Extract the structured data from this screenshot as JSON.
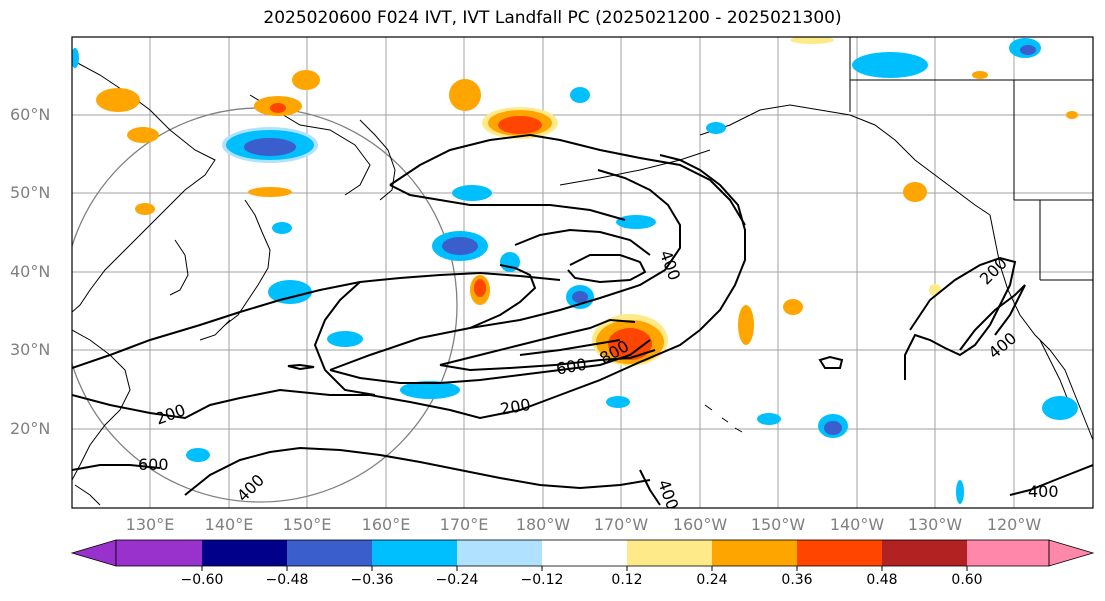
{
  "title": "2025020600 F024 IVT, IVT Landfall PC (2025021200 - 2025021300)",
  "lat_labels": [
    "60°N",
    "50°N",
    "40°N",
    "30°N",
    "20°N"
  ],
  "lon_labels": [
    "130°E",
    "140°E",
    "150°E",
    "160°E",
    "170°E",
    "180°W",
    "170°W",
    "160°W",
    "150°W",
    "140°W",
    "130°W",
    "120°W"
  ],
  "contour_labels": [
    "200",
    "400",
    "600",
    "800",
    "200",
    "600",
    "400",
    "400",
    "200",
    "400",
    "400"
  ],
  "colorbar": {
    "tick_labels": [
      "−0.60",
      "−0.48",
      "−0.36",
      "−0.24",
      "−0.12",
      "0.12",
      "0.24",
      "0.36",
      "0.48",
      "0.60"
    ],
    "colors": [
      "#9932cc",
      "#00008b",
      "#3a5fcd",
      "#00bfff",
      "#b0e2ff",
      "#ffffff",
      "#ffea8a",
      "#ffa500",
      "#ff4500",
      "#b22222",
      "#ff88aa"
    ]
  },
  "colors": {
    "contour": "#000000",
    "grid": "#a0a0a0",
    "coast": "#000000",
    "great_circle": "#808080"
  }
}
